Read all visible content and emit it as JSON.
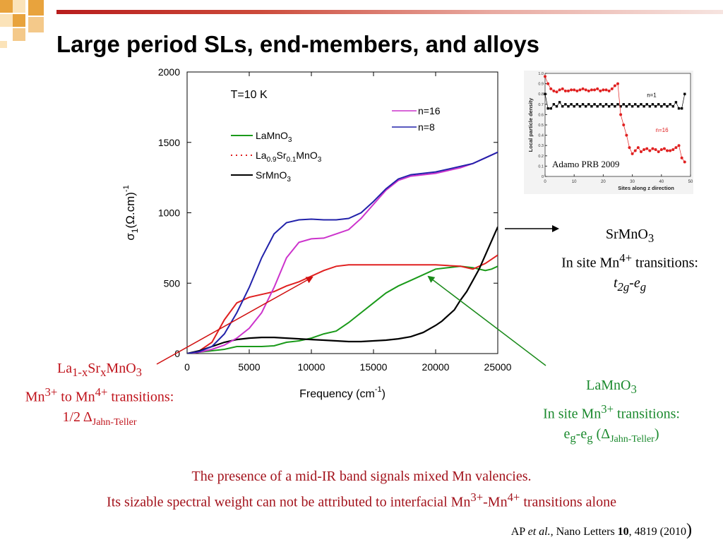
{
  "slide": {
    "title": "Large period SLs, end-members, and alloys",
    "colors": {
      "accent_orange": "#e8a33d",
      "header_line": "#c0352c",
      "red_text": "#c0141c",
      "green_text": "#1b8a2e"
    }
  },
  "notes": {
    "srmno3": {
      "line1": "SrMnO",
      "line1_sub": "3",
      "line2": "In site Mn",
      "line2_sup": "4+",
      "line2_tail": " transitions:",
      "line3_a": "t",
      "line3_sub": "2g",
      "line3_b": "-e",
      "line3_sub2": "g"
    },
    "lsmo": {
      "l1a": "La",
      "l1sub1": "1-x",
      "l1b": "Sr",
      "l1sub2": "x",
      "l1c": "MnO",
      "l1sub3": "3",
      "l2a": "Mn",
      "l2sup1": "3+",
      "l2b": " to Mn",
      "l2sup2": "4+",
      "l2c": " transitions:",
      "l3a": "1/2 Δ",
      "l3sub": "Jahn-Teller"
    },
    "lamno3": {
      "l1": "LaMnO",
      "l1sub": "3",
      "l2a": "In site Mn",
      "l2sup": "3+",
      "l2b": " transitions:",
      "l3a": "e",
      "l3sub1": "g",
      "l3b": "-e",
      "l3sub2": "g",
      "l3c": " (Δ",
      "l3sub3": "Jahn-Teller",
      "l3d": ")"
    }
  },
  "bottom": {
    "line1": "The presence of a mid-IR band signals mixed Mn valencies.",
    "line2a": "Its sizable spectral weight can not be attributed to interfacial Mn",
    "line2sup1": "3+",
    "line2b": "-Mn",
    "line2sup2": "4+",
    "line2c": " transitions alone"
  },
  "citation": {
    "a": "AP ",
    "b": "et al.",
    "c": ", Nano Letters ",
    "d": "10",
    "e": ", 4819 (2010",
    "f": ")"
  },
  "inset_caption": "Adamo PRB 2009",
  "chart_data": [
    {
      "type": "line",
      "title": "",
      "annotation": "T=10 K",
      "xlabel": "Frequency (cm",
      "xlabel_sup": "-1",
      "xlabel_end": ")",
      "ylabel": "σ",
      "ylabel_sub": "1",
      "ylabel_mid": "(Ω.cm)",
      "ylabel_sup": "-1",
      "xlim": [
        0,
        25000
      ],
      "ylim": [
        0,
        2000
      ],
      "xticks": [
        "0",
        "5000",
        "10000",
        "15000",
        "20000",
        "25000"
      ],
      "yticks": [
        "0",
        "500",
        "1000",
        "1500",
        "2000"
      ],
      "grid": false,
      "legend_right": [
        {
          "label": "n=16",
          "color": "#cc33cc"
        },
        {
          "label": "n=8",
          "color": "#2222aa"
        }
      ],
      "legend_left": [
        {
          "label": "LaMnO",
          "sub": "3",
          "color": "#1a9a1a",
          "style": "solid"
        },
        {
          "label": "La",
          "sub": "0.9",
          "label2": "Sr",
          "sub2": "0.1",
          "label3": "MnO",
          "sub3": "3",
          "color": "#e02020",
          "style": "dotted"
        },
        {
          "label": "SrMnO",
          "sub": "3",
          "color": "#000000",
          "style": "solid"
        }
      ],
      "series": [
        {
          "name": "LaMnO3",
          "color": "#1a9a1a",
          "x": [
            0,
            1000,
            2000,
            3000,
            4000,
            5000,
            6000,
            7000,
            8000,
            9000,
            10000,
            11000,
            12000,
            13000,
            14000,
            15000,
            16000,
            17000,
            18000,
            19000,
            20000,
            21000,
            22000,
            23000,
            24000,
            24500,
            25000
          ],
          "y": [
            0,
            10,
            20,
            30,
            50,
            50,
            50,
            55,
            80,
            90,
            110,
            140,
            160,
            220,
            290,
            360,
            430,
            480,
            520,
            560,
            600,
            610,
            620,
            610,
            590,
            600,
            620
          ]
        },
        {
          "name": "La0.9Sr0.1MnO3",
          "color": "#e02020",
          "x": [
            0,
            1000,
            2000,
            3000,
            4000,
            5000,
            6000,
            7000,
            8000,
            9000,
            10000,
            11000,
            12000,
            13000,
            14000,
            15000,
            16000,
            17000,
            18000,
            19000,
            20000,
            21000,
            22000,
            23000,
            24000,
            25000
          ],
          "y": [
            0,
            20,
            80,
            240,
            360,
            400,
            420,
            440,
            480,
            510,
            550,
            590,
            620,
            630,
            630,
            630,
            630,
            630,
            630,
            630,
            630,
            625,
            620,
            600,
            640,
            700
          ]
        },
        {
          "name": "SrMnO3",
          "color": "#000000",
          "x": [
            0,
            1000,
            2000,
            3000,
            4000,
            5000,
            6000,
            7000,
            8000,
            9000,
            10000,
            11000,
            12000,
            13000,
            14000,
            15000,
            16000,
            17000,
            18000,
            19000,
            20000,
            20500,
            21000,
            21500,
            22000,
            22500,
            23000,
            23500,
            24000,
            24500,
            25000
          ],
          "y": [
            0,
            20,
            50,
            80,
            100,
            110,
            115,
            115,
            110,
            105,
            100,
            95,
            90,
            85,
            85,
            90,
            95,
            105,
            120,
            150,
            200,
            230,
            270,
            310,
            380,
            440,
            520,
            600,
            700,
            800,
            900
          ]
        },
        {
          "name": "n=16",
          "color": "#cc33cc",
          "x": [
            0,
            1000,
            2000,
            3000,
            4000,
            5000,
            6000,
            7000,
            8000,
            9000,
            10000,
            11000,
            12000,
            13000,
            14000,
            15000,
            16000,
            17000,
            18000,
            19000,
            20000,
            21000,
            22000,
            23000,
            24000,
            25000
          ],
          "y": [
            0,
            10,
            30,
            60,
            110,
            180,
            290,
            470,
            680,
            790,
            815,
            820,
            850,
            880,
            960,
            1060,
            1160,
            1230,
            1260,
            1270,
            1280,
            1300,
            1320,
            1350,
            1390,
            1430
          ]
        },
        {
          "name": "n=8",
          "color": "#2222aa",
          "x": [
            0,
            1000,
            2000,
            3000,
            4000,
            5000,
            6000,
            7000,
            8000,
            9000,
            10000,
            11000,
            12000,
            13000,
            14000,
            15000,
            16000,
            17000,
            18000,
            19000,
            20000,
            21000,
            22000,
            23000,
            24000,
            25000
          ],
          "y": [
            0,
            15,
            50,
            140,
            290,
            470,
            680,
            850,
            930,
            950,
            955,
            950,
            950,
            960,
            1000,
            1080,
            1170,
            1240,
            1270,
            1280,
            1290,
            1310,
            1330,
            1350,
            1390,
            1430
          ]
        }
      ]
    },
    {
      "type": "scatter",
      "title": "",
      "xlabel": "Sites along z direction",
      "ylabel": "Local particle density",
      "xlim": [
        0,
        50
      ],
      "ylim": [
        0,
        1.0
      ],
      "xticks": [
        "0",
        "10",
        "20",
        "30",
        "40",
        "50"
      ],
      "yticks": [
        "0",
        "0.1",
        "0.2",
        "0.3",
        "0.4",
        "0.5",
        "0.6",
        "0.7",
        "0.8",
        "0.9",
        "1.0"
      ],
      "series": [
        {
          "name": "n=1",
          "color": "#000000",
          "x": [
            0,
            1,
            2,
            3,
            4,
            5,
            6,
            7,
            8,
            9,
            10,
            11,
            12,
            13,
            14,
            15,
            16,
            17,
            18,
            19,
            20,
            21,
            22,
            23,
            24,
            25,
            26,
            27,
            28,
            29,
            30,
            31,
            32,
            33,
            34,
            35,
            36,
            37,
            38,
            39,
            40,
            41,
            42,
            43,
            44,
            45,
            46,
            47,
            48
          ],
          "y": [
            0.8,
            0.66,
            0.66,
            0.7,
            0.68,
            0.72,
            0.68,
            0.7,
            0.68,
            0.7,
            0.68,
            0.7,
            0.68,
            0.7,
            0.68,
            0.7,
            0.68,
            0.7,
            0.68,
            0.7,
            0.68,
            0.7,
            0.68,
            0.7,
            0.68,
            0.7,
            0.68,
            0.7,
            0.68,
            0.7,
            0.68,
            0.7,
            0.68,
            0.7,
            0.68,
            0.7,
            0.68,
            0.7,
            0.68,
            0.7,
            0.68,
            0.7,
            0.68,
            0.7,
            0.68,
            0.72,
            0.66,
            0.66,
            0.8
          ]
        },
        {
          "name": "n=16",
          "color": "#e02020",
          "x": [
            0,
            1,
            2,
            3,
            4,
            5,
            6,
            7,
            8,
            9,
            10,
            11,
            12,
            13,
            14,
            15,
            16,
            17,
            18,
            19,
            20,
            21,
            22,
            23,
            24,
            25,
            26,
            27,
            28,
            29,
            30,
            31,
            32,
            33,
            34,
            35,
            36,
            37,
            38,
            39,
            40,
            41,
            42,
            43,
            44,
            45,
            46,
            47,
            48
          ],
          "y": [
            0.97,
            0.9,
            0.85,
            0.83,
            0.82,
            0.84,
            0.85,
            0.83,
            0.83,
            0.84,
            0.84,
            0.83,
            0.84,
            0.85,
            0.84,
            0.83,
            0.84,
            0.84,
            0.85,
            0.83,
            0.84,
            0.84,
            0.83,
            0.85,
            0.88,
            0.9,
            0.6,
            0.5,
            0.4,
            0.28,
            0.22,
            0.25,
            0.28,
            0.24,
            0.26,
            0.27,
            0.25,
            0.27,
            0.26,
            0.24,
            0.26,
            0.27,
            0.25,
            0.25,
            0.26,
            0.28,
            0.3,
            0.18,
            0.14
          ]
        }
      ],
      "labels": [
        "n=1",
        "n=16"
      ]
    }
  ]
}
